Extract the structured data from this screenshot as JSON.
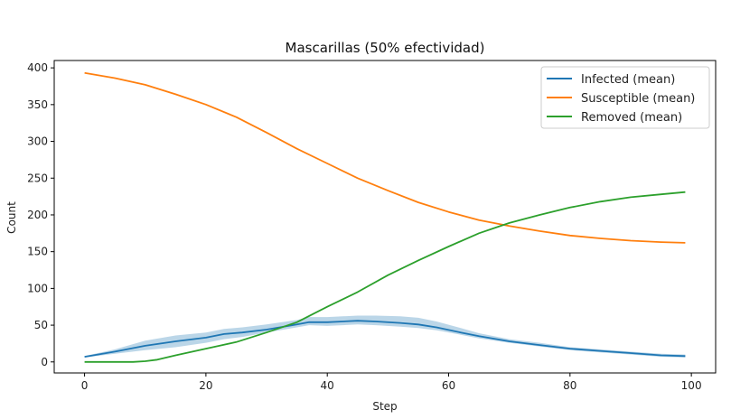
{
  "chart_data": {
    "type": "line",
    "title": "Mascarillas (50% efectividad)",
    "xlabel": "Step",
    "ylabel": "Count",
    "xlim": [
      -5,
      104
    ],
    "ylim": [
      -15,
      410
    ],
    "xticks": [
      0,
      20,
      40,
      60,
      80,
      100
    ],
    "yticks": [
      0,
      50,
      100,
      150,
      200,
      250,
      300,
      350,
      400
    ],
    "grid": false,
    "legend_position": "top-right",
    "series": [
      {
        "name": "Infected (mean)",
        "color": "#1f77b4",
        "x": [
          0,
          5,
          10,
          15,
          20,
          23,
          26,
          30,
          35,
          37,
          40,
          45,
          48,
          52,
          55,
          58,
          62,
          65,
          70,
          75,
          80,
          85,
          90,
          95,
          99
        ],
        "y": [
          7,
          14,
          22,
          28,
          33,
          38,
          40,
          44,
          51,
          54,
          54,
          56,
          55,
          53,
          51,
          47,
          40,
          35,
          28,
          23,
          18,
          15,
          12,
          9,
          8
        ],
        "band_lower": [
          6,
          11,
          16,
          20,
          26,
          31,
          34,
          40,
          47,
          50,
          49,
          51,
          50,
          48,
          46,
          43,
          37,
          32,
          26,
          21,
          16,
          13,
          10,
          7,
          6
        ],
        "band_upper": [
          8,
          17,
          29,
          36,
          40,
          45,
          47,
          51,
          57,
          61,
          61,
          63,
          63,
          62,
          60,
          55,
          46,
          39,
          31,
          26,
          20,
          17,
          14,
          11,
          10
        ]
      },
      {
        "name": "Susceptible (mean)",
        "color": "#ff7f0e",
        "x": [
          0,
          5,
          10,
          15,
          20,
          25,
          30,
          35,
          40,
          45,
          50,
          55,
          60,
          65,
          70,
          75,
          80,
          85,
          90,
          95,
          99
        ],
        "y": [
          393,
          386,
          377,
          364,
          350,
          333,
          312,
          290,
          270,
          250,
          233,
          217,
          204,
          193,
          185,
          178,
          172,
          168,
          165,
          163,
          162
        ]
      },
      {
        "name": "Removed (mean)",
        "color": "#2ca02c",
        "x": [
          0,
          5,
          8,
          10,
          12,
          15,
          20,
          25,
          30,
          35,
          40,
          45,
          50,
          55,
          60,
          65,
          70,
          75,
          80,
          85,
          90,
          95,
          99
        ],
        "y": [
          0,
          0,
          0,
          1,
          3,
          9,
          18,
          27,
          40,
          54,
          75,
          95,
          118,
          138,
          157,
          175,
          189,
          200,
          210,
          218,
          224,
          228,
          231
        ]
      }
    ]
  }
}
